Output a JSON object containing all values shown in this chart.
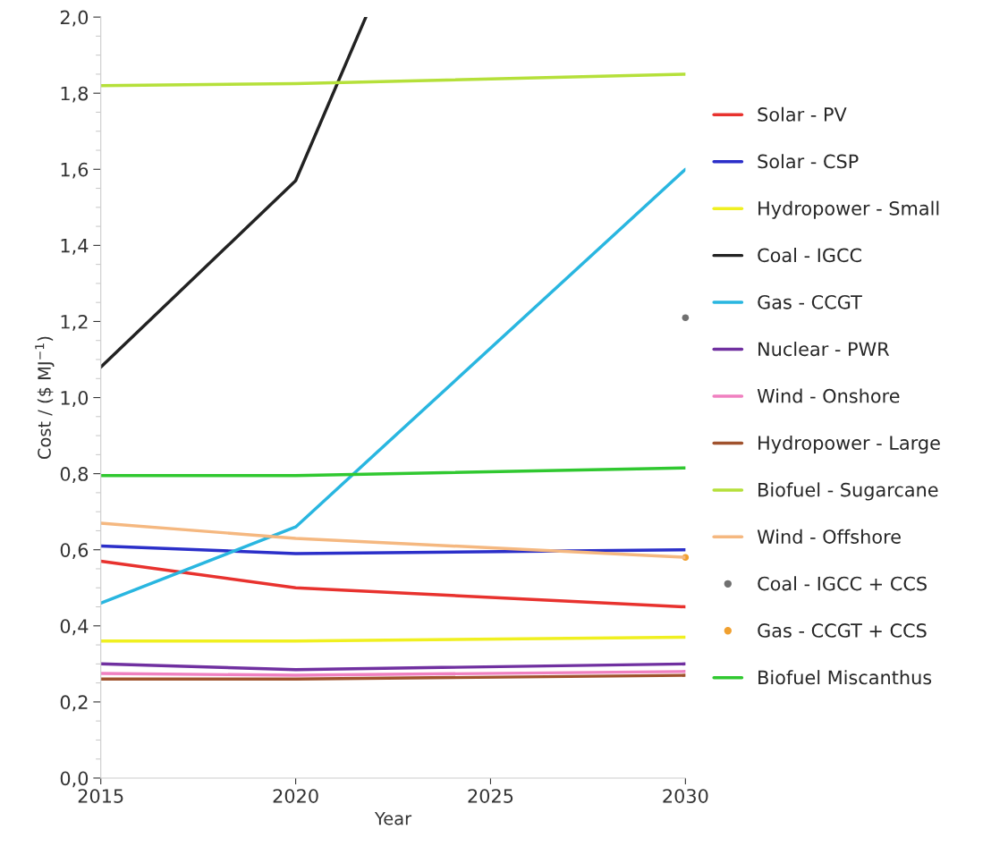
{
  "chart_data": {
    "type": "line",
    "xlabel": "Year",
    "ylabel": "Cost / ($ MJ$^{−1}$)",
    "xlim": [
      2015,
      2030
    ],
    "xticks": [
      2015,
      2020,
      2025,
      2030
    ],
    "ylim": [
      0,
      2.0
    ],
    "yticks": [
      {
        "value": 0,
        "label": "0,0"
      },
      {
        "value": 0.2,
        "label": "0,2"
      },
      {
        "value": 0.4,
        "label": "0,4"
      },
      {
        "value": 0.6,
        "label": "0,6"
      },
      {
        "value": 0.8,
        "label": "0,8"
      },
      {
        "value": 1.0,
        "label": "1,0"
      },
      {
        "value": 1.2,
        "label": "1,2"
      },
      {
        "value": 1.4,
        "label": "1,4"
      },
      {
        "value": 1.6,
        "label": "1,6"
      },
      {
        "value": 1.8,
        "label": "1,8"
      },
      {
        "value": 2.0,
        "label": "2,0"
      }
    ],
    "x": [
      2015,
      2020,
      2030
    ],
    "grid": false,
    "legend": "right",
    "series": [
      {
        "name": "Solar - PV",
        "color": "#e8322e",
        "values": [
          0.57,
          0.5,
          0.45
        ]
      },
      {
        "name": "Solar - CSP",
        "color": "#2b2fc9",
        "values": [
          0.61,
          0.59,
          0.6
        ]
      },
      {
        "name": "Hydropower - Small",
        "color": "#f0f020",
        "values": [
          0.36,
          0.36,
          0.37
        ]
      },
      {
        "name": "Coal - IGCC",
        "color": "#222222",
        "x": [
          2015,
          2020,
          2021.8
        ],
        "values": [
          1.08,
          1.57,
          2.0
        ]
      },
      {
        "name": "Gas - CCGT",
        "color": "#29b6e0",
        "values": [
          0.46,
          0.66,
          1.6
        ]
      },
      {
        "name": "Nuclear - PWR",
        "color": "#7030a0",
        "values": [
          0.3,
          0.285,
          0.3
        ]
      },
      {
        "name": "Wind - Onshore",
        "color": "#f080c0",
        "values": [
          0.275,
          0.27,
          0.28
        ]
      },
      {
        "name": "Hydropower - Large",
        "color": "#a0522d",
        "values": [
          0.26,
          0.26,
          0.27
        ]
      },
      {
        "name": "Biofuel - Sugarcane",
        "color": "#b5e03a",
        "values": [
          1.82,
          1.825,
          1.85
        ]
      },
      {
        "name": "Wind - Offshore",
        "color": "#f5b880",
        "values": [
          0.67,
          0.63,
          0.58
        ]
      },
      {
        "name": "Coal - IGCC + CCS",
        "color": "#707070",
        "type": "scatter",
        "marker": "circle",
        "x": [
          2030
        ],
        "values": [
          1.21
        ]
      },
      {
        "name": "Gas - CCGT + CCS",
        "color": "#f0a030",
        "type": "scatter",
        "marker": "circle",
        "x": [
          2030
        ],
        "values": [
          0.58
        ]
      },
      {
        "name": "Biofuel Miscanthus",
        "color": "#30c830",
        "values": [
          0.795,
          0.795,
          0.815
        ]
      }
    ]
  }
}
